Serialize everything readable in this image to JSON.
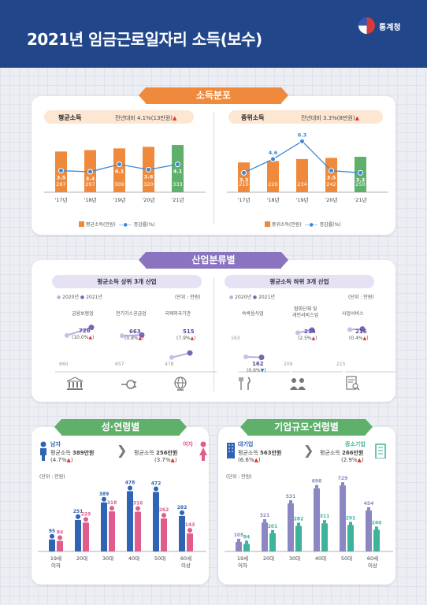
{
  "header": {
    "title": "2021년 임금근로일자리 소득(보수)",
    "org": "통계청"
  },
  "sections": {
    "dist": "소득분포",
    "industry": "산업분류별",
    "sexage": "성·연령별",
    "size": "기업규모·연령별"
  },
  "dist": {
    "avg": {
      "label": "평균소득",
      "note": "전년대비 4.1%(13만원)",
      "legend_bar": "평균소득(만원)",
      "legend_line": "증감률(%)"
    },
    "med": {
      "label": "중위소득",
      "note": "전년대비 3.3%(8만원)",
      "legend_bar": "중위소득(만원)",
      "legend_line": "증감률(%)"
    }
  },
  "industry": {
    "top_title": "평균소득 상위 3개 산업",
    "bottom_title": "평균소득 하위 3개 산업",
    "y2020": "2020년",
    "y2021": "2021년",
    "unit": "(단위 : 만원)",
    "top": [
      {
        "name": "금융보험업",
        "v2020": "660",
        "v2021": "726",
        "chg": "(10.0%"
      },
      {
        "name": "전기가스공급업",
        "v2020": "657",
        "v2021": "663",
        "chg": "(0.8%"
      },
      {
        "name": "국제외국기관",
        "v2020": "478",
        "v2021": "515",
        "chg": "(7.9%"
      }
    ],
    "bottom": [
      {
        "name": "숙박음식업",
        "v2020": "163",
        "v2021": "162",
        "chg": "(0.6%"
      },
      {
        "name1": "협회단체 및",
        "name2": "개인서비스업",
        "v2020": "209",
        "v2021": "214",
        "chg": "(2.5%"
      },
      {
        "name": "사업서비스",
        "v2020": "215",
        "v2021": "216",
        "chg": "(0.4%"
      }
    ]
  },
  "sexage": {
    "male": {
      "label": "남자",
      "line1": "평균소득 ",
      "value": "389만원",
      "chg": "(4.7%"
    },
    "female": {
      "label": "여자",
      "line1": "평균소득 ",
      "value": "256만원",
      "chg": "(3.7%"
    },
    "unit": "(단위 : 만원)"
  },
  "size": {
    "large": {
      "label": "대기업",
      "line1": "평균소득 ",
      "value": "563만원",
      "chg": "(6.6%"
    },
    "sme": {
      "label": "중소기업",
      "line1": "평균소득 ",
      "value": "266만원",
      "chg": "(2.9%"
    },
    "unit": "(단위 : 만원)"
  },
  "colors": {
    "navy": "#21468a",
    "orange": "#ef8a3c",
    "green": "#5fb06b",
    "purple": "#8a73bf",
    "blue": "#2f63b3",
    "pink": "#e05c8c",
    "teal": "#3cb39a",
    "lavender": "#8b87c2"
  },
  "chart_data": [
    {
      "type": "bar",
      "title": "평균소득",
      "categories": [
        "'17년",
        "'18년",
        "'19년",
        "'20년",
        "'21년"
      ],
      "series": [
        {
          "name": "평균소득(만원)",
          "values": [
            287,
            297,
            309,
            320,
            333
          ]
        },
        {
          "name": "증감률(%)",
          "values": [
            3.5,
            3.4,
            4.1,
            3.6,
            4.1
          ]
        }
      ]
    },
    {
      "type": "bar",
      "title": "중위소득",
      "categories": [
        "'17년",
        "'18년",
        "'19년",
        "'20년",
        "'21년"
      ],
      "series": [
        {
          "name": "중위소득(만원)",
          "values": [
            210,
            220,
            234,
            242,
            250
          ]
        },
        {
          "name": "증감률(%)",
          "values": [
            3.3,
            4.6,
            6.3,
            3.5,
            3.3
          ]
        }
      ]
    },
    {
      "type": "bar",
      "title": "성·연령별",
      "categories": [
        "19세 이하",
        "20대",
        "30대",
        "40대",
        "50대",
        "60세 이상"
      ],
      "series": [
        {
          "name": "남자",
          "values": [
            95,
            251,
            389,
            478,
            472,
            282
          ]
        },
        {
          "name": "여자",
          "values": [
            84,
            229,
            318,
            316,
            262,
            143
          ]
        }
      ]
    },
    {
      "type": "bar",
      "title": "기업규모·연령별",
      "categories": [
        "19세 이하",
        "20대",
        "30대",
        "40대",
        "50대",
        "60세 이상"
      ],
      "series": [
        {
          "name": "대기업",
          "values": [
            105,
            321,
            531,
            698,
            729,
            454
          ]
        },
        {
          "name": "중소기업",
          "values": [
            84,
            201,
            282,
            311,
            291,
            240
          ]
        }
      ]
    }
  ]
}
